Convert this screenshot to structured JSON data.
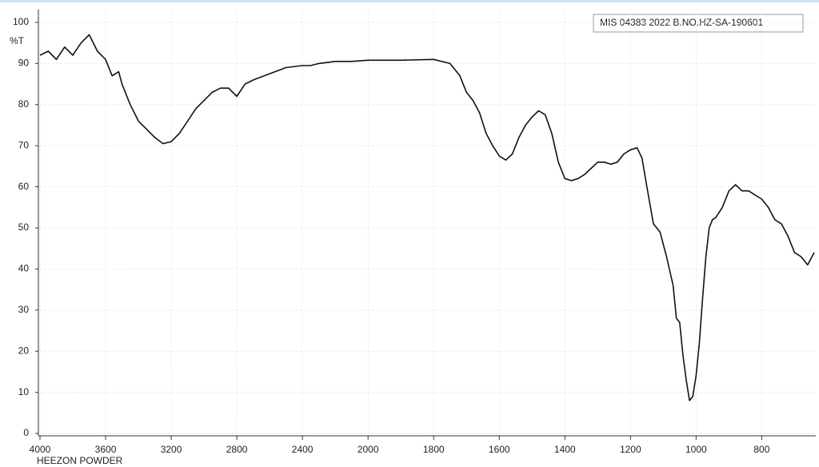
{
  "chart_data": {
    "type": "line",
    "ylabel": "%T",
    "annotation": "MIS 04383 2022 B.NO.HZ-SA-190601",
    "footer": "HEEZON POWDER",
    "x": [
      4000,
      3950,
      3900,
      3850,
      3800,
      3750,
      3700,
      3650,
      3600,
      3560,
      3520,
      3500,
      3450,
      3400,
      3350,
      3300,
      3250,
      3200,
      3150,
      3100,
      3050,
      3000,
      2950,
      2900,
      2850,
      2800,
      2750,
      2700,
      2600,
      2500,
      2400,
      2350,
      2300,
      2200,
      2100,
      2000,
      1900,
      1800,
      1750,
      1720,
      1700,
      1680,
      1660,
      1640,
      1620,
      1600,
      1580,
      1560,
      1540,
      1520,
      1500,
      1480,
      1460,
      1440,
      1420,
      1400,
      1380,
      1360,
      1340,
      1320,
      1300,
      1280,
      1260,
      1240,
      1220,
      1200,
      1180,
      1165,
      1150,
      1130,
      1110,
      1090,
      1070,
      1060,
      1050,
      1040,
      1030,
      1020,
      1010,
      1000,
      990,
      980,
      970,
      960,
      950,
      940,
      920,
      900,
      880,
      860,
      840,
      820,
      800,
      780,
      760,
      740,
      720,
      700,
      680,
      660,
      640
    ],
    "values": [
      92,
      93,
      91,
      94,
      92,
      95,
      97,
      93,
      91,
      87,
      88,
      85,
      80,
      76,
      74,
      72,
      70.5,
      71,
      73,
      76,
      79,
      81,
      83,
      84,
      84,
      82,
      85,
      86,
      87.5,
      89,
      89.5,
      89.5,
      90,
      90.5,
      90.5,
      90.8,
      90.8,
      91,
      90,
      87,
      83,
      81,
      78,
      73,
      70,
      67.5,
      66.5,
      68,
      72,
      75,
      77,
      78.5,
      77.5,
      73,
      66,
      62,
      61.5,
      62,
      63,
      64.5,
      66,
      66,
      65.5,
      66,
      68,
      69,
      69.5,
      67,
      60,
      51,
      49,
      43,
      36,
      28,
      27,
      19,
      13,
      8,
      9,
      14,
      22,
      33,
      43,
      50,
      52,
      52.5,
      55,
      59,
      60.5,
      59,
      59,
      58,
      57,
      55,
      52,
      51,
      48,
      44,
      43,
      41,
      44
    ],
    "color": "#111111",
    "xlim": [
      4000,
      640
    ],
    "xticks": [
      4000,
      3600,
      3200,
      2800,
      2400,
      2000,
      1800,
      1600,
      1400,
      1200,
      1000,
      800
    ],
    "ylim": [
      0,
      100
    ],
    "yticks": [
      0,
      10,
      20,
      30,
      40,
      50,
      60,
      70,
      80,
      90,
      100
    ],
    "grid": true
  }
}
